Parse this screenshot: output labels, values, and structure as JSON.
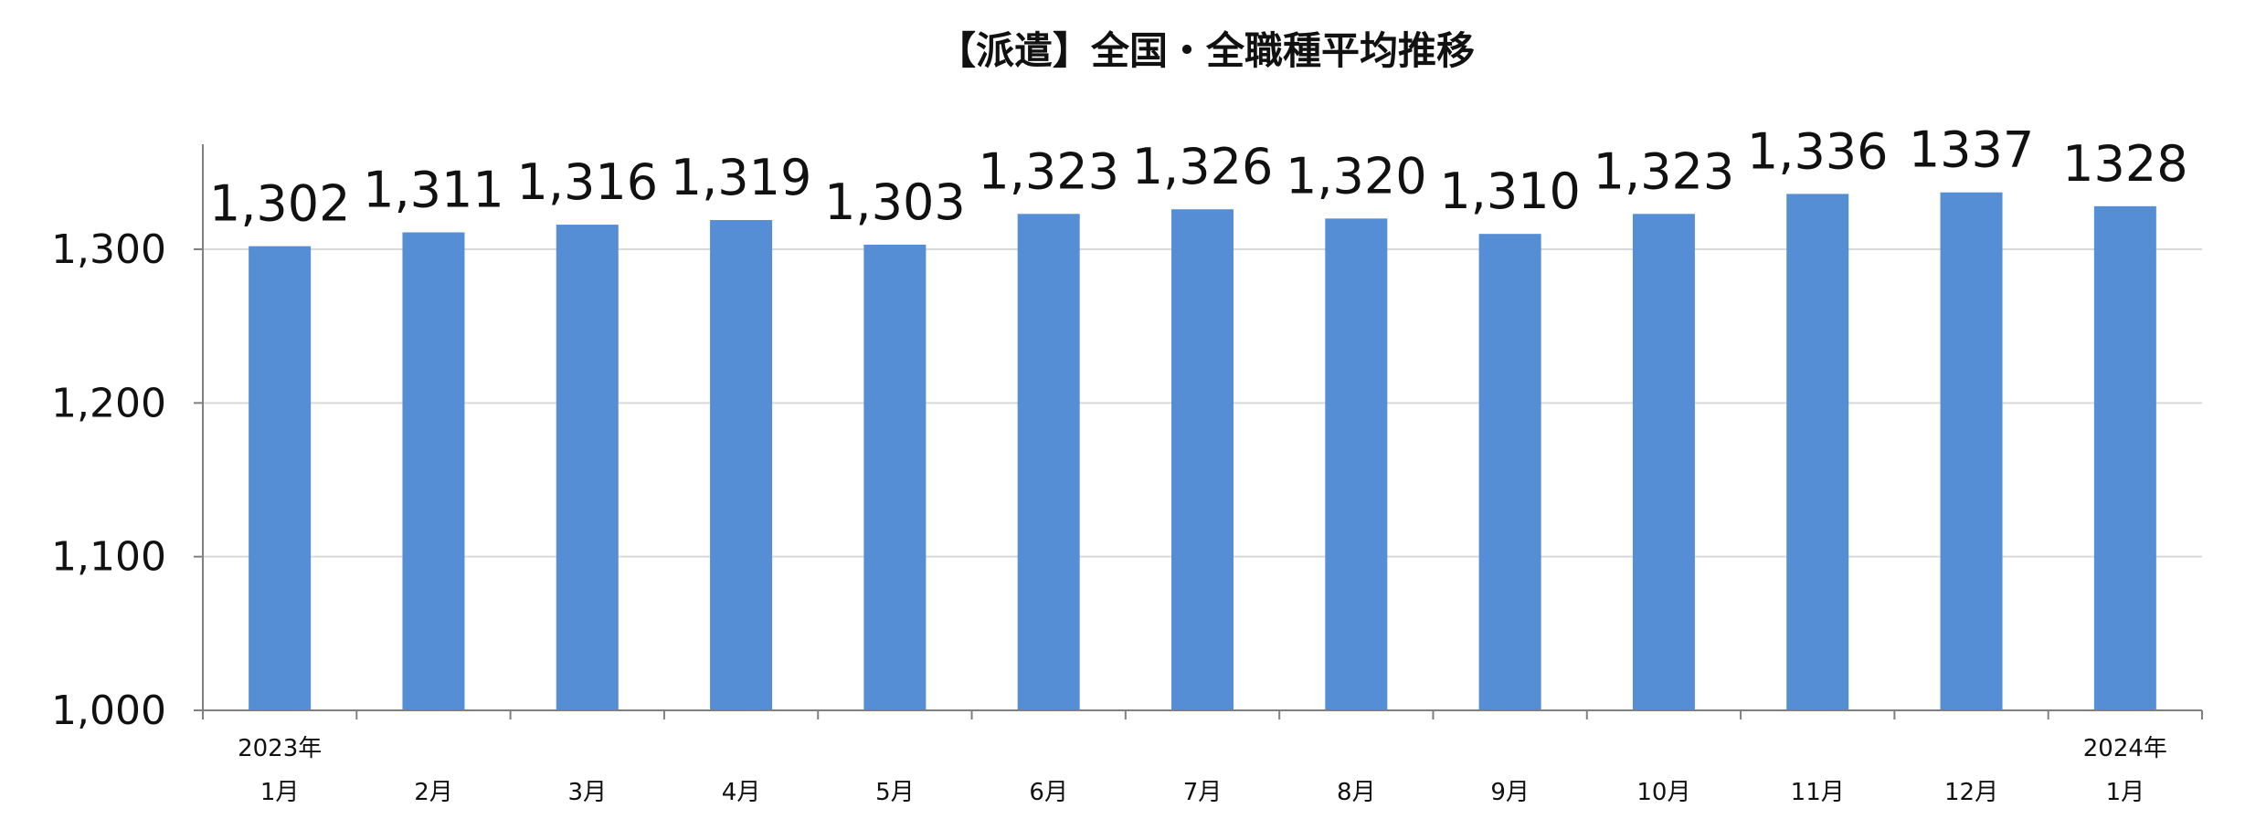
{
  "chart_data": {
    "type": "bar",
    "title": "【派遣】全国・全職種平均推移",
    "xlabel": "",
    "ylabel": "",
    "categories": [
      [
        "2023年",
        "1月"
      ],
      [
        "2月"
      ],
      [
        "3月"
      ],
      [
        "4月"
      ],
      [
        "5月"
      ],
      [
        "6月"
      ],
      [
        "7月"
      ],
      [
        "8月"
      ],
      [
        "9月"
      ],
      [
        "10月"
      ],
      [
        "11月"
      ],
      [
        "12月"
      ],
      [
        "2024年",
        "1月"
      ]
    ],
    "values": [
      1302,
      1311,
      1316,
      1319,
      1303,
      1323,
      1326,
      1320,
      1310,
      1323,
      1336,
      1337,
      1328
    ],
    "data_labels": [
      "1,302",
      "1,311",
      "1,316",
      "1,319",
      "1,303",
      "1,323",
      "1,326",
      "1,320",
      "1,310",
      "1,323",
      "1,336",
      "1337",
      "1328"
    ],
    "ylim": [
      1000,
      1300
    ],
    "yticks": [
      1000,
      1100,
      1200,
      1300
    ],
    "ytick_labels": [
      "1,000",
      "1,100",
      "1,200",
      "1,300"
    ],
    "grid": true,
    "legend": "none",
    "colors": {
      "bar": "#558ED5",
      "grid": "#D9D9D9",
      "axis": "#808080",
      "text": "#111111"
    }
  }
}
